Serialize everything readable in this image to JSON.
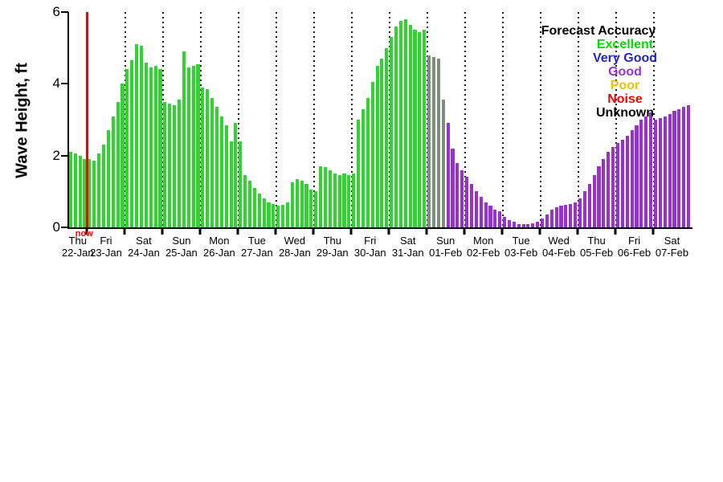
{
  "figure": {
    "background": "#ffffff",
    "ylabel": "Wave Height, ft",
    "now_label": "now"
  },
  "legend": {
    "title": "Forecast Accuracy",
    "entries": [
      {
        "label": "Excellent",
        "color": "#00dd00"
      },
      {
        "label": "Very Good",
        "color": "#2222dd"
      },
      {
        "label": "Good",
        "color": "#9933cc"
      },
      {
        "label": "Poor",
        "color": "#f0c000"
      },
      {
        "label": "Noise",
        "color": "#ff0000"
      },
      {
        "label": "Unknown",
        "color": "#000000"
      }
    ]
  },
  "chart_data": {
    "type": "bar",
    "title": "",
    "xlabel": "",
    "ylabel": "Wave Height, ft",
    "ylim": [
      0,
      6
    ],
    "yticks": [
      0,
      2,
      4,
      6
    ],
    "grid": "vertical-dotted-per-day",
    "legend_position": "top-right-inside",
    "total_hours": 396,
    "first_day_span_hours": 12,
    "bar_interval_hours": 3,
    "now_hour": 11,
    "days": [
      {
        "day": "Thu",
        "date": "22-Jan"
      },
      {
        "day": "Fri",
        "date": "23-Jan"
      },
      {
        "day": "Sat",
        "date": "24-Jan"
      },
      {
        "day": "Sun",
        "date": "25-Jan"
      },
      {
        "day": "Mon",
        "date": "26-Jan"
      },
      {
        "day": "Tue",
        "date": "27-Jan"
      },
      {
        "day": "Wed",
        "date": "28-Jan"
      },
      {
        "day": "Thu",
        "date": "29-Jan"
      },
      {
        "day": "Fri",
        "date": "30-Jan"
      },
      {
        "day": "Sat",
        "date": "31-Jan"
      },
      {
        "day": "Sun",
        "date": "01-Feb"
      },
      {
        "day": "Mon",
        "date": "02-Feb"
      },
      {
        "day": "Tue",
        "date": "03-Feb"
      },
      {
        "day": "Wed",
        "date": "04-Feb"
      },
      {
        "day": "Thu",
        "date": "05-Feb"
      },
      {
        "day": "Fri",
        "date": "06-Feb"
      },
      {
        "day": "Sat",
        "date": "07-Feb"
      }
    ],
    "quality_colors": {
      "e": "#2fd42f",
      "g": "#9b30d0",
      "u": "#7d8f7d"
    },
    "quality_names": {
      "e": "excellent",
      "g": "good",
      "u": "unknown"
    },
    "bars": [
      [
        0,
        2.1,
        "e"
      ],
      [
        3,
        2.05,
        "e"
      ],
      [
        6,
        2.0,
        "e"
      ],
      [
        9,
        1.9,
        "e"
      ],
      [
        12,
        1.9,
        "e"
      ],
      [
        15,
        1.85,
        "e"
      ],
      [
        18,
        2.05,
        "e"
      ],
      [
        21,
        2.3,
        "e"
      ],
      [
        24,
        2.7,
        "e"
      ],
      [
        27,
        3.1,
        "e"
      ],
      [
        30,
        3.5,
        "e"
      ],
      [
        33,
        4.0,
        "e"
      ],
      [
        36,
        4.4,
        "e"
      ],
      [
        39,
        4.65,
        "e"
      ],
      [
        42,
        5.1,
        "e"
      ],
      [
        45,
        5.05,
        "e"
      ],
      [
        48,
        4.6,
        "e"
      ],
      [
        51,
        4.45,
        "e"
      ],
      [
        54,
        4.5,
        "e"
      ],
      [
        57,
        4.4,
        "e"
      ],
      [
        60,
        3.5,
        "e"
      ],
      [
        63,
        3.45,
        "e"
      ],
      [
        66,
        3.4,
        "e"
      ],
      [
        69,
        3.55,
        "e"
      ],
      [
        72,
        4.9,
        "e"
      ],
      [
        75,
        4.45,
        "e"
      ],
      [
        78,
        4.5,
        "e"
      ],
      [
        81,
        4.55,
        "e"
      ],
      [
        84,
        3.9,
        "e"
      ],
      [
        87,
        3.85,
        "e"
      ],
      [
        90,
        3.6,
        "e"
      ],
      [
        93,
        3.35,
        "e"
      ],
      [
        96,
        3.1,
        "e"
      ],
      [
        99,
        2.85,
        "e"
      ],
      [
        102,
        2.4,
        "e"
      ],
      [
        105,
        2.9,
        "e"
      ],
      [
        108,
        2.4,
        "e"
      ],
      [
        111,
        1.45,
        "e"
      ],
      [
        114,
        1.3,
        "e"
      ],
      [
        117,
        1.1,
        "e"
      ],
      [
        120,
        0.95,
        "e"
      ],
      [
        123,
        0.8,
        "e"
      ],
      [
        126,
        0.7,
        "e"
      ],
      [
        129,
        0.65,
        "e"
      ],
      [
        132,
        0.6,
        "e"
      ],
      [
        135,
        0.62,
        "e"
      ],
      [
        138,
        0.7,
        "e"
      ],
      [
        141,
        1.25,
        "e"
      ],
      [
        144,
        1.35,
        "e"
      ],
      [
        147,
        1.3,
        "e"
      ],
      [
        150,
        1.2,
        "e"
      ],
      [
        153,
        1.05,
        "e"
      ],
      [
        156,
        1.0,
        "e"
      ],
      [
        159,
        1.7,
        "e"
      ],
      [
        162,
        1.68,
        "e"
      ],
      [
        165,
        1.6,
        "e"
      ],
      [
        168,
        1.5,
        "e"
      ],
      [
        171,
        1.45,
        "e"
      ],
      [
        174,
        1.5,
        "e"
      ],
      [
        177,
        1.45,
        "e"
      ],
      [
        180,
        1.5,
        "e"
      ],
      [
        183,
        3.0,
        "e"
      ],
      [
        186,
        3.3,
        "e"
      ],
      [
        189,
        3.6,
        "e"
      ],
      [
        192,
        4.05,
        "e"
      ],
      [
        195,
        4.5,
        "e"
      ],
      [
        198,
        4.7,
        "e"
      ],
      [
        201,
        5.0,
        "e"
      ],
      [
        204,
        5.3,
        "e"
      ],
      [
        207,
        5.6,
        "e"
      ],
      [
        210,
        5.75,
        "e"
      ],
      [
        213,
        5.8,
        "e"
      ],
      [
        216,
        5.65,
        "e"
      ],
      [
        219,
        5.5,
        "e"
      ],
      [
        222,
        5.45,
        "e"
      ],
      [
        225,
        5.5,
        "e"
      ],
      [
        228,
        4.8,
        "u"
      ],
      [
        231,
        4.75,
        "u"
      ],
      [
        234,
        4.7,
        "u"
      ],
      [
        237,
        3.55,
        "u"
      ],
      [
        240,
        2.9,
        "g"
      ],
      [
        243,
        2.2,
        "g"
      ],
      [
        246,
        1.8,
        "g"
      ],
      [
        249,
        1.6,
        "g"
      ],
      [
        252,
        1.4,
        "g"
      ],
      [
        255,
        1.2,
        "g"
      ],
      [
        258,
        1.0,
        "g"
      ],
      [
        261,
        0.85,
        "g"
      ],
      [
        264,
        0.7,
        "g"
      ],
      [
        267,
        0.6,
        "g"
      ],
      [
        270,
        0.5,
        "g"
      ],
      [
        273,
        0.45,
        "g"
      ],
      [
        276,
        0.3,
        "g"
      ],
      [
        279,
        0.2,
        "g"
      ],
      [
        282,
        0.15,
        "g"
      ],
      [
        285,
        0.1,
        "g"
      ],
      [
        288,
        0.1,
        "g"
      ],
      [
        291,
        0.1,
        "g"
      ],
      [
        294,
        0.12,
        "g"
      ],
      [
        297,
        0.15,
        "g"
      ],
      [
        300,
        0.25,
        "g"
      ],
      [
        303,
        0.35,
        "g"
      ],
      [
        306,
        0.5,
        "g"
      ],
      [
        309,
        0.55,
        "g"
      ],
      [
        312,
        0.6,
        "g"
      ],
      [
        315,
        0.62,
        "g"
      ],
      [
        318,
        0.65,
        "g"
      ],
      [
        321,
        0.7,
        "g"
      ],
      [
        324,
        0.8,
        "g"
      ],
      [
        327,
        1.0,
        "g"
      ],
      [
        330,
        1.2,
        "g"
      ],
      [
        333,
        1.45,
        "g"
      ],
      [
        336,
        1.7,
        "g"
      ],
      [
        339,
        1.9,
        "g"
      ],
      [
        342,
        2.1,
        "g"
      ],
      [
        345,
        2.25,
        "g"
      ],
      [
        348,
        2.35,
        "g"
      ],
      [
        351,
        2.45,
        "g"
      ],
      [
        354,
        2.55,
        "g"
      ],
      [
        357,
        2.7,
        "g"
      ],
      [
        360,
        2.85,
        "g"
      ],
      [
        363,
        3.0,
        "g"
      ],
      [
        366,
        3.1,
        "g"
      ],
      [
        369,
        3.2,
        "g"
      ],
      [
        372,
        3.0,
        "g"
      ],
      [
        375,
        3.05,
        "g"
      ],
      [
        378,
        3.1,
        "g"
      ],
      [
        381,
        3.15,
        "g"
      ],
      [
        384,
        3.25,
        "g"
      ],
      [
        387,
        3.3,
        "g"
      ],
      [
        390,
        3.35,
        "g"
      ],
      [
        393,
        3.4,
        "g"
      ]
    ]
  }
}
